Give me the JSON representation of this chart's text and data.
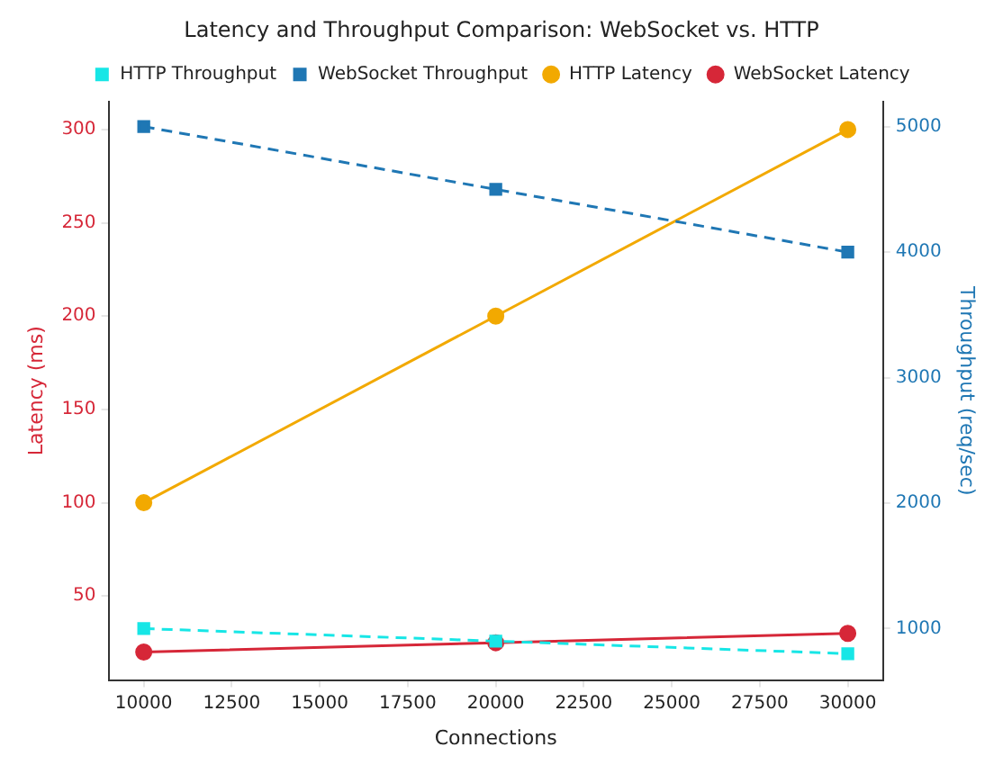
{
  "chart_data": {
    "type": "line",
    "title": "Latency and Throughput Comparison: WebSocket vs. HTTP",
    "xlabel": "Connections",
    "ylabel": "Latency (ms)",
    "y2label": "Throughput (req/sec)",
    "x": [
      10000,
      20000,
      30000
    ],
    "xlim": [
      9000,
      31000
    ],
    "xticks": [
      10000,
      12500,
      15000,
      17500,
      20000,
      22500,
      25000,
      27500,
      30000
    ],
    "ylim": [
      5,
      315
    ],
    "yticks": [
      50,
      100,
      150,
      200,
      250,
      300
    ],
    "y2lim": [
      590,
      5200
    ],
    "y2ticks": [
      1000,
      2000,
      3000,
      4000,
      5000
    ],
    "series": [
      {
        "name": "WebSocket Latency",
        "color": "#d62738",
        "values": [
          20,
          25,
          30
        ],
        "marker": "circle",
        "line_style": "solid"
      },
      {
        "name": "HTTP Latency",
        "color": "#f2a900",
        "values": [
          100,
          200,
          300
        ],
        "marker": "circle",
        "line_style": "solid"
      },
      {
        "name": "WebSocket Throughput",
        "color": "#1f77b4",
        "values": [
          5000,
          4500,
          4000
        ],
        "axis": "y2",
        "marker": "square",
        "line_style": "dashed"
      },
      {
        "name": "HTTP Throughput",
        "color": "#17e6e6",
        "values": [
          1000,
          900,
          800
        ],
        "axis": "y2",
        "marker": "square",
        "line_style": "dashed"
      }
    ],
    "legend": "top",
    "grid": false
  }
}
